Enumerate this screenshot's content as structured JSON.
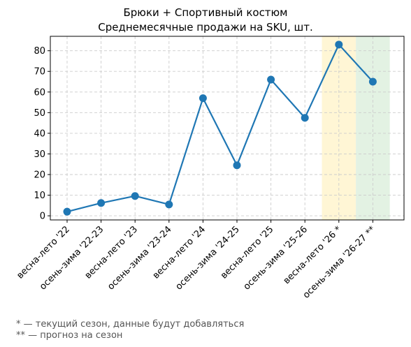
{
  "chart_data": {
    "type": "line",
    "title": "Брюки + Спортивный костюм",
    "subtitle": "Среднемесячные продажи на SKU, шт.",
    "categories": [
      "весна-лето '22",
      "осень-зима '22-23",
      "весна-лето '23",
      "осень-зима '23-24",
      "весна-лето '24",
      "осень-зима '24-25",
      "весна-лето '25",
      "осень-зима '25-26",
      "весна-лето '26 *",
      "осень-зима '26-27 **"
    ],
    "series": [
      {
        "values": [
          2,
          6.2,
          9.6,
          5.5,
          57,
          24.5,
          66,
          47.5,
          83,
          65
        ]
      }
    ],
    "ylim": [
      -2,
      87
    ],
    "yticks": [
      0,
      10,
      20,
      30,
      40,
      50,
      60,
      70,
      80
    ],
    "grid": true,
    "highlight_bands": [
      {
        "category": "весна-лето '26 *",
        "color": "#fff6d5"
      },
      {
        "category": "осень-зима '26-27 **",
        "color": "#e3f2e3"
      }
    ],
    "line_color": "#1f77b4"
  },
  "footnotes": [
    "* — текущий сезон, данные будут добавляться",
    "** — прогноз на сезон"
  ]
}
